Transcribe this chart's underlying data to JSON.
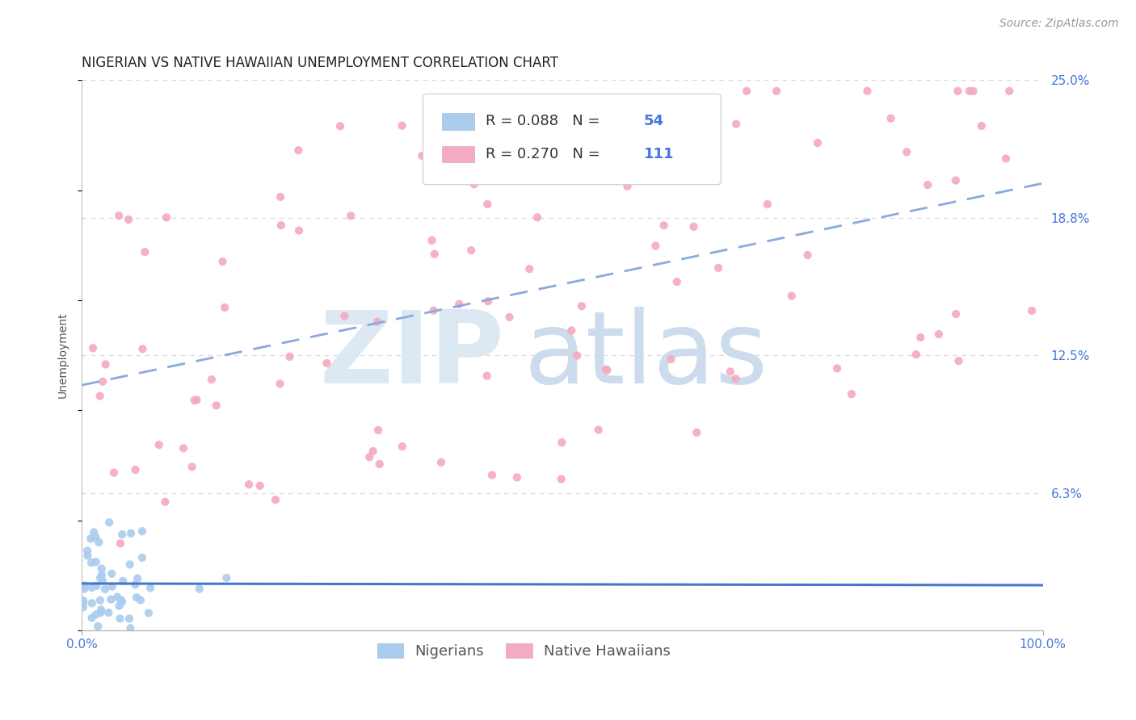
{
  "title": "NIGERIAN VS NATIVE HAWAIIAN UNEMPLOYMENT CORRELATION CHART",
  "source": "Source: ZipAtlas.com",
  "ylabel": "Unemployment",
  "xlim": [
    0.0,
    1.0
  ],
  "ylim": [
    0.0,
    0.25
  ],
  "ytick_vals": [
    0.0,
    0.0625,
    0.125,
    0.1875,
    0.25
  ],
  "ytick_labels": [
    "",
    "6.3%",
    "12.5%",
    "18.8%",
    "25.0%"
  ],
  "xtick_vals": [
    0.0,
    1.0
  ],
  "xtick_labels": [
    "0.0%",
    "100.0%"
  ],
  "background_color": "#ffffff",
  "grid_color": "#d8d8d8",
  "watermark_zip_color": "#dce8f2",
  "watermark_atlas_color": "#ccdcec",
  "legend_r1": "R = 0.088",
  "legend_n1": "N = 54",
  "legend_r2": "R = 0.270",
  "legend_n2": "N = 111",
  "nigerian_color": "#aaccee",
  "nigerian_edge": "none",
  "hawaiian_color": "#f4aac0",
  "hawaiian_edge": "none",
  "trendline_nigerian_color": "#4477cc",
  "trendline_hawaiian_color": "#dd4477",
  "label_dark": "#333333",
  "label_blue": "#4477dd",
  "tick_color": "#4477dd",
  "title_fontsize": 12,
  "axis_label_fontsize": 10,
  "tick_fontsize": 11,
  "legend_fontsize": 13,
  "source_fontsize": 10,
  "nigerian_n": 54,
  "hawaiian_n": 111
}
